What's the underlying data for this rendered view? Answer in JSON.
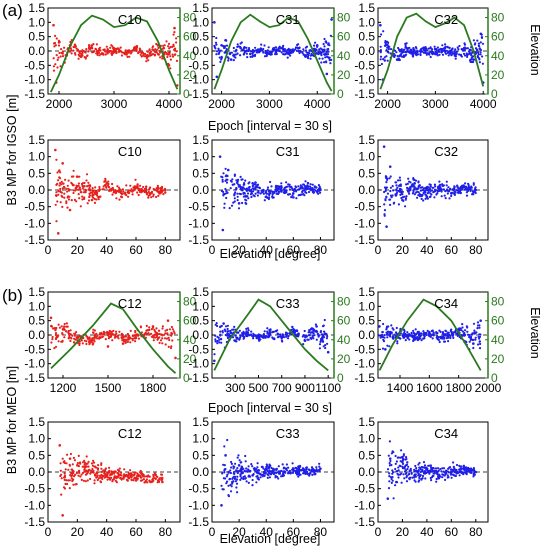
{
  "figure": {
    "label_a": "(a)",
    "label_b": "(b)",
    "ylabel_a": "B3 MP for IGSO [m]",
    "ylabel_b": "B3 MP for MEO [m]",
    "xlabel_epoch": "Epoch [interval = 30 s]",
    "xlabel_elev": "Elevation [degree]",
    "right_label": "Elevation"
  },
  "chart_data": [
    {
      "id": "a-epoch-c10",
      "type": "scatter",
      "title": "C10",
      "color": "#e8201c",
      "xlim": [
        1800,
        4200
      ],
      "ylim": [
        -1.5,
        1.5
      ],
      "ylim_right": [
        0,
        90
      ],
      "xticks": [
        2000,
        3000,
        4000
      ],
      "yticks": [
        -1.5,
        -1.0,
        -0.5,
        0.0,
        0.5,
        1.0,
        1.5
      ],
      "yticks_right": [
        0,
        20,
        40,
        60,
        80
      ],
      "points": [
        [
          1900,
          0.9
        ],
        [
          1950,
          -1.1
        ],
        [
          2000,
          0.3
        ],
        [
          2100,
          -0.4
        ],
        [
          2200,
          0.2
        ],
        [
          2400,
          -0.2
        ],
        [
          2600,
          0.1
        ],
        [
          2800,
          -0.1
        ],
        [
          3000,
          0.05
        ],
        [
          3200,
          -0.1
        ],
        [
          3400,
          0.1
        ],
        [
          3600,
          -0.2
        ],
        [
          3800,
          0.2
        ],
        [
          4000,
          -0.5
        ],
        [
          4100,
          0.8
        ],
        [
          4150,
          -1.2
        ]
      ],
      "elevation_curve": [
        [
          1850,
          2
        ],
        [
          2000,
          20
        ],
        [
          2200,
          50
        ],
        [
          2400,
          72
        ],
        [
          2600,
          82
        ],
        [
          2800,
          78
        ],
        [
          3000,
          70
        ],
        [
          3200,
          72
        ],
        [
          3400,
          80
        ],
        [
          3600,
          76
        ],
        [
          3800,
          55
        ],
        [
          4000,
          25
        ],
        [
          4150,
          5
        ]
      ]
    },
    {
      "id": "a-epoch-c31",
      "type": "scatter",
      "title": "C31",
      "color": "#1f1fe8",
      "xlim": [
        1800,
        4350
      ],
      "ylim": [
        -1.5,
        1.5
      ],
      "ylim_right": [
        0,
        90
      ],
      "xticks": [
        2000,
        3000,
        4000
      ],
      "yticks": [
        -1.5,
        -1.0,
        -0.5,
        0.0,
        0.5,
        1.0,
        1.5
      ],
      "yticks_right": [
        0,
        20,
        40,
        60,
        80
      ],
      "points": [
        [
          1850,
          1.0
        ],
        [
          1900,
          -0.9
        ],
        [
          2000,
          0.2
        ],
        [
          2200,
          -0.3
        ],
        [
          2400,
          0.1
        ],
        [
          2600,
          -0.1
        ],
        [
          2800,
          0.05
        ],
        [
          3000,
          -0.1
        ],
        [
          3200,
          0.1
        ],
        [
          3400,
          -0.1
        ],
        [
          3600,
          0.1
        ],
        [
          3800,
          -0.2
        ],
        [
          4000,
          0.2
        ],
        [
          4200,
          -0.8
        ],
        [
          4300,
          1.1
        ]
      ],
      "elevation_curve": [
        [
          1850,
          5
        ],
        [
          2000,
          25
        ],
        [
          2200,
          55
        ],
        [
          2400,
          75
        ],
        [
          2600,
          83
        ],
        [
          2800,
          76
        ],
        [
          3000,
          70
        ],
        [
          3200,
          72
        ],
        [
          3400,
          80
        ],
        [
          3600,
          76
        ],
        [
          3800,
          58
        ],
        [
          4000,
          35
        ],
        [
          4200,
          12
        ],
        [
          4300,
          3
        ]
      ]
    },
    {
      "id": "a-epoch-c32",
      "type": "scatter",
      "title": "C32",
      "color": "#1f1fe8",
      "xlim": [
        1800,
        4100
      ],
      "ylim": [
        -1.5,
        1.5
      ],
      "ylim_right": [
        0,
        90
      ],
      "xticks": [
        2000,
        3000,
        4000
      ],
      "yticks": [
        -1.5,
        -1.0,
        -0.5,
        0.0,
        0.5,
        1.0,
        1.5
      ],
      "yticks_right": [
        0,
        20,
        40,
        60,
        80
      ],
      "points": [
        [
          1850,
          0.9
        ],
        [
          1900,
          -1.0
        ],
        [
          2000,
          0.2
        ],
        [
          2200,
          -0.3
        ],
        [
          2400,
          0.1
        ],
        [
          2600,
          -0.1
        ],
        [
          2800,
          0.05
        ],
        [
          3000,
          -0.1
        ],
        [
          3200,
          0.1
        ],
        [
          3400,
          -0.1
        ],
        [
          3600,
          0.1
        ],
        [
          3800,
          -0.3
        ],
        [
          3950,
          0.6
        ],
        [
          4000,
          -1.1
        ]
      ],
      "elevation_curve": [
        [
          1850,
          5
        ],
        [
          2000,
          25
        ],
        [
          2200,
          60
        ],
        [
          2400,
          80
        ],
        [
          2600,
          84
        ],
        [
          2800,
          76
        ],
        [
          3000,
          70
        ],
        [
          3200,
          74
        ],
        [
          3400,
          80
        ],
        [
          3600,
          72
        ],
        [
          3800,
          45
        ],
        [
          4000,
          8
        ]
      ]
    },
    {
      "id": "a-elev-c10",
      "type": "scatter",
      "title": "C10",
      "color": "#e8201c",
      "xlim": [
        0,
        90
      ],
      "ylim": [
        -1.5,
        1.5
      ],
      "xticks": [
        0,
        20,
        40,
        60,
        80
      ],
      "yticks": [
        -1.5,
        -1.0,
        -0.5,
        0.0,
        0.5,
        1.0,
        1.5
      ],
      "points": [
        [
          5,
          1.2
        ],
        [
          7,
          -1.3
        ],
        [
          10,
          0.8
        ],
        [
          15,
          -0.6
        ],
        [
          20,
          0.4
        ],
        [
          30,
          -0.3
        ],
        [
          40,
          0.2
        ],
        [
          50,
          -0.2
        ],
        [
          60,
          0.1
        ],
        [
          70,
          -0.1
        ],
        [
          80,
          0.0
        ]
      ]
    },
    {
      "id": "a-elev-c31",
      "type": "scatter",
      "title": "C31",
      "color": "#1f1fe8",
      "xlim": [
        0,
        90
      ],
      "ylim": [
        -1.5,
        1.5
      ],
      "xticks": [
        0,
        20,
        40,
        60,
        80
      ],
      "yticks": [
        -1.5,
        -1.0,
        -0.5,
        0.0,
        0.5,
        1.0,
        1.5
      ],
      "points": [
        [
          6,
          1.0
        ],
        [
          8,
          -1.2
        ],
        [
          12,
          0.6
        ],
        [
          20,
          -0.4
        ],
        [
          30,
          0.2
        ],
        [
          40,
          -0.2
        ],
        [
          50,
          0.1
        ],
        [
          60,
          -0.1
        ],
        [
          70,
          0.1
        ],
        [
          80,
          0.0
        ]
      ]
    },
    {
      "id": "a-elev-c32",
      "type": "scatter",
      "title": "C32",
      "color": "#1f1fe8",
      "xlim": [
        0,
        90
      ],
      "ylim": [
        -1.5,
        1.5
      ],
      "xticks": [
        0,
        20,
        40,
        60,
        80
      ],
      "yticks": [
        -1.5,
        -1.0,
        -0.5,
        0.0,
        0.5,
        1.0,
        1.5
      ],
      "points": [
        [
          5,
          1.3
        ],
        [
          7,
          -1.1
        ],
        [
          10,
          0.7
        ],
        [
          20,
          -0.3
        ],
        [
          30,
          0.2
        ],
        [
          40,
          -0.2
        ],
        [
          50,
          0.1
        ],
        [
          60,
          -0.1
        ],
        [
          70,
          0.1
        ],
        [
          80,
          0.0
        ]
      ]
    },
    {
      "id": "b-epoch-c12",
      "type": "scatter",
      "title": "C12",
      "color": "#e8201c",
      "xlim": [
        1100,
        1980
      ],
      "ylim": [
        -1.5,
        1.5
      ],
      "ylim_right": [
        0,
        90
      ],
      "xticks": [
        1200,
        1500,
        1800
      ],
      "yticks": [
        -1.5,
        -1.0,
        -0.5,
        0.0,
        0.5,
        1.0,
        1.5
      ],
      "yticks_right": [
        0,
        20,
        40,
        60,
        80
      ],
      "points": [
        [
          1120,
          0.6
        ],
        [
          1200,
          0.2
        ],
        [
          1300,
          -0.2
        ],
        [
          1400,
          -0.3
        ],
        [
          1500,
          -0.4
        ],
        [
          1600,
          -0.3
        ],
        [
          1700,
          0.0
        ],
        [
          1800,
          0.3
        ],
        [
          1900,
          0.5
        ],
        [
          1950,
          -0.8
        ]
      ],
      "elevation_curve": [
        [
          1120,
          10
        ],
        [
          1250,
          30
        ],
        [
          1400,
          55
        ],
        [
          1520,
          78
        ],
        [
          1600,
          72
        ],
        [
          1700,
          50
        ],
        [
          1800,
          30
        ],
        [
          1900,
          12
        ],
        [
          1950,
          5
        ]
      ]
    },
    {
      "id": "b-epoch-c33",
      "type": "scatter",
      "title": "C33",
      "color": "#1f1fe8",
      "xlim": [
        100,
        1150
      ],
      "ylim": [
        -1.5,
        1.5
      ],
      "ylim_right": [
        0,
        90
      ],
      "xticks": [
        300,
        500,
        700,
        900,
        1100
      ],
      "yticks": [
        -1.5,
        -1.0,
        -0.5,
        0.0,
        0.5,
        1.0,
        1.5
      ],
      "yticks_right": [
        0,
        20,
        40,
        60,
        80
      ],
      "points": [
        [
          120,
          -0.9
        ],
        [
          200,
          0.4
        ],
        [
          300,
          -0.2
        ],
        [
          400,
          0.1
        ],
        [
          500,
          -0.1
        ],
        [
          600,
          0.1
        ],
        [
          700,
          -0.1
        ],
        [
          800,
          0.2
        ],
        [
          900,
          -0.2
        ],
        [
          1000,
          0.3
        ],
        [
          1100,
          -0.6
        ]
      ],
      "elevation_curve": [
        [
          120,
          8
        ],
        [
          250,
          40
        ],
        [
          400,
          65
        ],
        [
          500,
          82
        ],
        [
          600,
          75
        ],
        [
          700,
          60
        ],
        [
          800,
          45
        ],
        [
          900,
          30
        ],
        [
          1000,
          18
        ],
        [
          1100,
          8
        ]
      ]
    },
    {
      "id": "b-epoch-c34",
      "type": "scatter",
      "title": "C34",
      "color": "#1f1fe8",
      "xlim": [
        1250,
        2000
      ],
      "ylim": [
        -1.5,
        1.5
      ],
      "ylim_right": [
        0,
        90
      ],
      "xticks": [
        1400,
        1600,
        1800,
        2000
      ],
      "yticks": [
        -1.5,
        -1.0,
        -0.5,
        0.0,
        0.5,
        1.0,
        1.5
      ],
      "yticks_right": [
        0,
        20,
        40,
        60,
        80
      ],
      "points": [
        [
          1260,
          0.3
        ],
        [
          1300,
          -0.5
        ],
        [
          1400,
          0.1
        ],
        [
          1500,
          -0.1
        ],
        [
          1600,
          0.1
        ],
        [
          1700,
          -0.1
        ],
        [
          1800,
          0.2
        ],
        [
          1900,
          -0.3
        ],
        [
          1950,
          0.5
        ]
      ],
      "elevation_curve": [
        [
          1260,
          8
        ],
        [
          1350,
          35
        ],
        [
          1450,
          60
        ],
        [
          1560,
          82
        ],
        [
          1650,
          75
        ],
        [
          1750,
          60
        ],
        [
          1850,
          35
        ],
        [
          1950,
          8
        ]
      ]
    },
    {
      "id": "b-elev-c12",
      "type": "scatter",
      "title": "C12",
      "color": "#e8201c",
      "xlim": [
        0,
        90
      ],
      "ylim": [
        -1.5,
        1.5
      ],
      "xticks": [
        0,
        20,
        40,
        60,
        80
      ],
      "yticks": [
        -1.5,
        -1.0,
        -0.5,
        0.0,
        0.5,
        1.0,
        1.5
      ],
      "points": [
        [
          8,
          0.8
        ],
        [
          10,
          -1.3
        ],
        [
          15,
          0.4
        ],
        [
          20,
          0.2
        ],
        [
          30,
          0.0
        ],
        [
          40,
          -0.1
        ],
        [
          50,
          -0.2
        ],
        [
          60,
          -0.2
        ],
        [
          70,
          -0.3
        ],
        [
          78,
          -0.3
        ]
      ]
    },
    {
      "id": "b-elev-c33",
      "type": "scatter",
      "title": "C33",
      "color": "#1f1fe8",
      "xlim": [
        0,
        90
      ],
      "ylim": [
        -1.5,
        1.5
      ],
      "xticks": [
        0,
        20,
        40,
        60,
        80
      ],
      "yticks": [
        -1.5,
        -1.0,
        -0.5,
        0.0,
        0.5,
        1.0,
        1.5
      ],
      "points": [
        [
          7,
          -1.0
        ],
        [
          10,
          0.5
        ],
        [
          15,
          -0.3
        ],
        [
          20,
          0.2
        ],
        [
          30,
          -0.1
        ],
        [
          40,
          0.1
        ],
        [
          50,
          0.0
        ],
        [
          60,
          0.1
        ],
        [
          70,
          0.0
        ],
        [
          80,
          0.1
        ]
      ]
    },
    {
      "id": "b-elev-c34",
      "type": "scatter",
      "title": "C34",
      "color": "#1f1fe8",
      "xlim": [
        0,
        90
      ],
      "ylim": [
        -1.5,
        1.5
      ],
      "xticks": [
        0,
        20,
        40,
        60,
        80
      ],
      "yticks": [
        -1.5,
        -1.0,
        -0.5,
        0.0,
        0.5,
        1.0,
        1.5
      ],
      "points": [
        [
          8,
          -0.8
        ],
        [
          10,
          0.4
        ],
        [
          15,
          -0.3
        ],
        [
          20,
          0.3
        ],
        [
          30,
          -0.1
        ],
        [
          40,
          0.1
        ],
        [
          50,
          -0.1
        ],
        [
          60,
          0.0
        ],
        [
          70,
          0.1
        ],
        [
          80,
          0.0
        ]
      ]
    }
  ]
}
